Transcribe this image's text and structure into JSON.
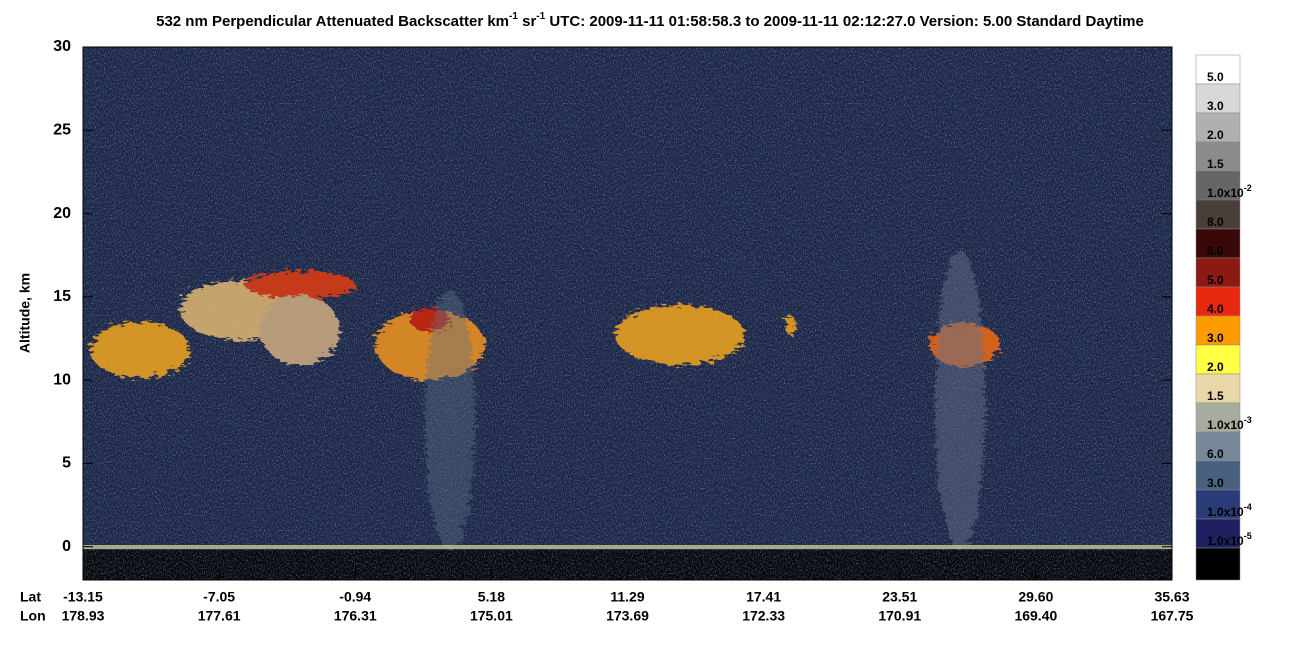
{
  "chart_data": {
    "type": "curtain",
    "title": {
      "parts": [
        "532 nm Perpendicular Attenuated Backscatter km",
        "-1",
        " sr",
        "-1",
        "  UTC: 2009-11-11 01:58:58.3 to 2009-11-11 02:12:27.0  Version: 5.00 Standard Daytime"
      ]
    },
    "ylabel": "Altitude, km",
    "ylim": [
      -2,
      30
    ],
    "yticks": [
      0,
      5,
      10,
      15,
      20,
      25,
      30
    ],
    "x_rows": [
      {
        "name": "Lat",
        "ticks": [
          -13.15,
          -7.05,
          -0.94,
          5.18,
          11.29,
          17.41,
          23.51,
          {
            "value": 29.6,
            "label": "29.60"
          },
          35.63
        ]
      },
      {
        "name": "Lon",
        "ticks": [
          178.93,
          177.61,
          176.31,
          175.01,
          173.69,
          172.33,
          170.91,
          {
            "value": 169.4,
            "label": "169.40"
          },
          167.75
        ]
      }
    ],
    "colorbar": {
      "colors": [
        "#ffffff",
        "#d8d8d8",
        "#b0b0b0",
        "#8c8c8c",
        "#666666",
        "#4a3e3a",
        "#3a0808",
        "#8c1a12",
        "#e82810",
        "#ff9a00",
        "#ffff44",
        "#e8d8a8",
        "#a8aca0",
        "#788898",
        "#4a6080",
        "#2a3c78",
        "#1e2060",
        "#000000"
      ],
      "labels": [
        "5.0",
        "3.0",
        "2.0",
        "1.5",
        {
          "label": "1.0x10",
          "sup": "-2"
        },
        "8.0",
        "6.0",
        "5.0",
        "4.0",
        "3.0",
        "2.0",
        "1.5",
        {
          "label": "1.0x10",
          "sup": "-3"
        },
        "6.0",
        "3.0",
        {
          "label": "1.0x10",
          "sup": "-4"
        },
        {
          "label": "1.0x10",
          "sup": "-5"
        }
      ]
    }
  }
}
